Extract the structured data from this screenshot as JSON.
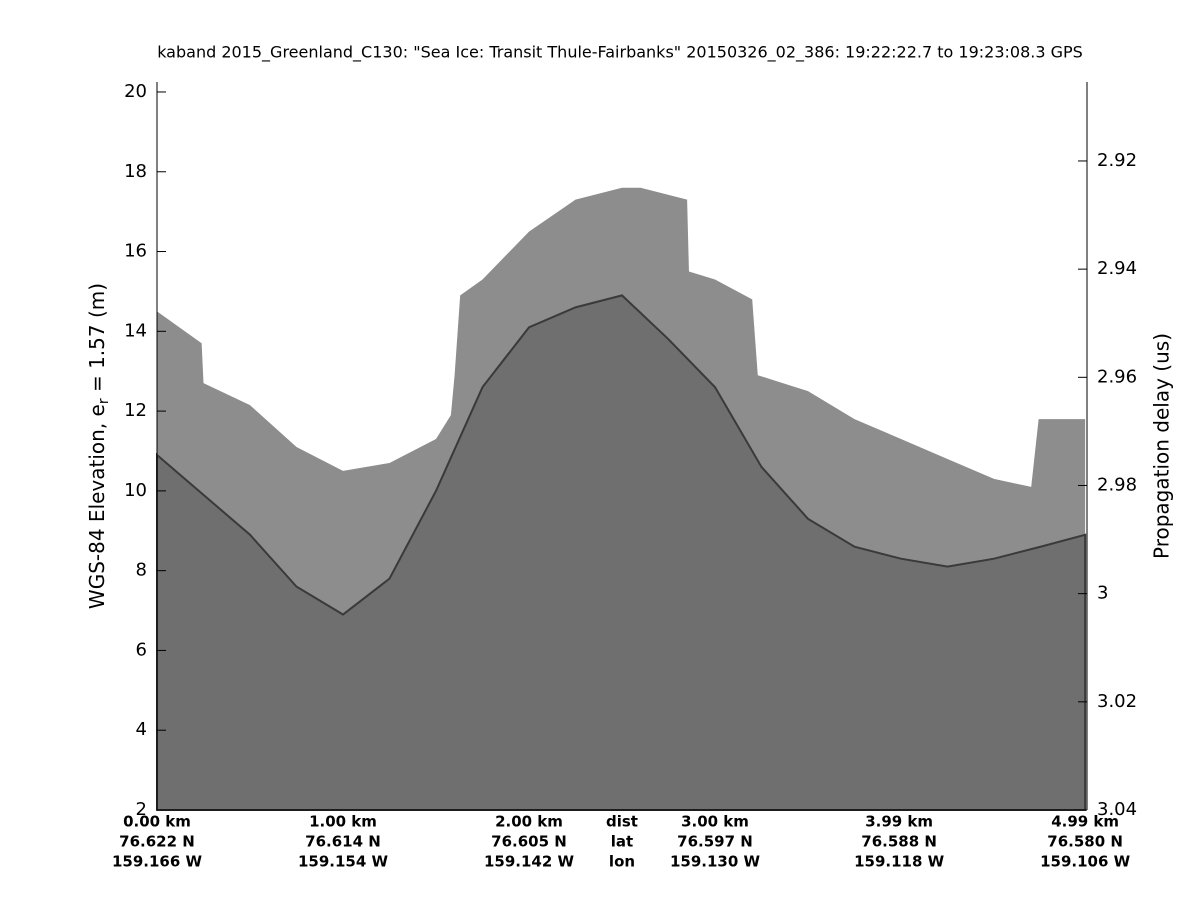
{
  "chart_data": {
    "type": "echogram",
    "title": "kaband 2015_Greenland_C130: \"Sea Ice: Transit Thule-Fairbanks\"  20150326_02_386: 19:22:22.7 to 19:23:08.3 GPS",
    "ylabel_parts": [
      "WGS-84 Elevation, e",
      "r",
      " = 1.57 (m)"
    ],
    "y2label": "Propagation delay (us)",
    "xlim": [
      0,
      5.0
    ],
    "xticks": [
      {
        "value": 0,
        "label": "0.00 km"
      },
      {
        "value": 1.0,
        "label": "1.00 km"
      },
      {
        "value": 2.0,
        "label": "2.00 km"
      },
      {
        "value": 3.0,
        "label": "3.00 km"
      },
      {
        "value": 3.99,
        "label": "3.99 km"
      },
      {
        "value": 4.99,
        "label": "4.99 km"
      }
    ],
    "lat_labels": [
      "76.622 N",
      "76.614 N",
      "76.605 N",
      "76.597 N",
      "76.588 N",
      "76.580 N"
    ],
    "lon_labels": [
      "159.166 W",
      "159.154 W",
      "159.142 W",
      "159.130 W",
      "159.118 W",
      "159.106 W"
    ],
    "row_labels": [
      "dist",
      "lat",
      "lon"
    ],
    "ylim": [
      2,
      20.25
    ],
    "yticks": [
      2,
      4,
      6,
      8,
      10,
      12,
      14,
      16,
      18,
      20
    ],
    "y2lim": [
      3.04,
      2.9054
    ],
    "y2ticks": [
      2.92,
      2.94,
      2.96,
      2.98,
      3,
      3.02,
      3.04
    ],
    "series": [
      {
        "color": "#8d8d8d",
        "x": [
          0,
          0.24,
          0.25,
          0.5,
          0.75,
          1.0,
          1.25,
          1.5,
          1.58,
          1.6,
          1.63,
          1.75,
          2.0,
          2.25,
          2.5,
          2.6,
          2.85,
          2.86,
          3.0,
          3.2,
          3.23,
          3.5,
          3.75,
          4.0,
          4.25,
          4.5,
          4.7,
          4.74,
          4.99
        ],
        "values": [
          14.5,
          13.7,
          12.7,
          12.15,
          11.1,
          10.5,
          10.7,
          11.3,
          11.9,
          12.9,
          14.9,
          15.3,
          16.5,
          17.3,
          17.6,
          17.6,
          17.3,
          15.5,
          15.3,
          14.8,
          12.9,
          12.5,
          11.8,
          11.3,
          10.8,
          10.3,
          10.1,
          11.8,
          11.8
        ]
      },
      {
        "color": "#6f6f6f",
        "x": [
          0,
          0.25,
          0.5,
          0.75,
          1.0,
          1.25,
          1.5,
          1.75,
          2.0,
          2.25,
          2.5,
          2.75,
          3.0,
          3.25,
          3.5,
          3.75,
          4.0,
          4.25,
          4.5,
          4.75,
          4.99
        ],
        "values": [
          10.9,
          9.9,
          8.9,
          7.6,
          6.9,
          7.8,
          10.0,
          12.6,
          14.1,
          14.6,
          14.9,
          13.8,
          12.6,
          10.6,
          9.3,
          8.6,
          8.3,
          8.1,
          8.3,
          8.6,
          8.9
        ]
      }
    ]
  }
}
